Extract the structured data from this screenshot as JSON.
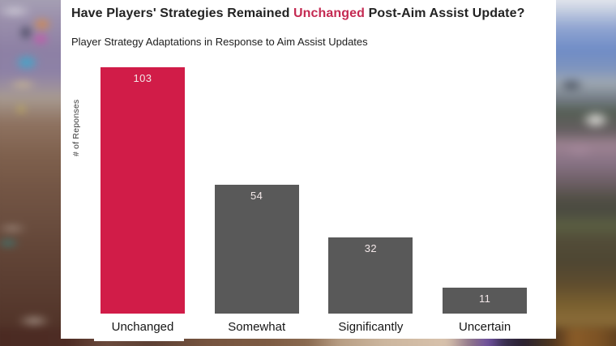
{
  "chart": {
    "title_pre": "Have Players' Strategies Remained ",
    "title_highlight": "Unchanged",
    "title_post": " Post-Aim Assist Update?",
    "subtitle": "Player Strategy Adaptations in Response to Aim Assist Updates"
  },
  "chart_data": {
    "type": "bar",
    "title": "Have Players' Strategies Remained Unchanged Post-Aim Assist Update?",
    "subtitle": "Player Strategy Adaptations in Response to Aim Assist Updates",
    "xlabel": "",
    "ylabel": "# of Reponses",
    "categories": [
      "Unchanged",
      "Somewhat",
      "Significantly",
      "Uncertain"
    ],
    "values": [
      103,
      54,
      32,
      11
    ],
    "highlighted_category": "Unchanged",
    "value_labels": "inside-top",
    "grid": false,
    "legend": false,
    "ylim": [
      0,
      110
    ],
    "colors": {
      "highlight_bar": "#d11c48",
      "default_bar": "#595959",
      "value_label": "#f2e7e8",
      "title_highlight": "#c42a52"
    }
  }
}
